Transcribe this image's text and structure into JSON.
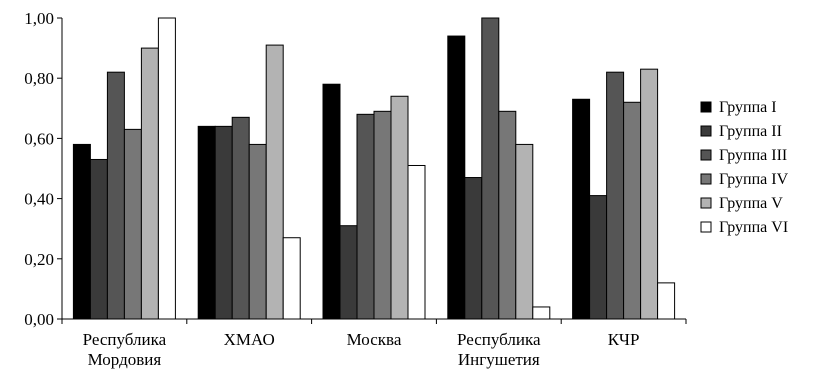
{
  "chart_data": {
    "type": "bar",
    "title": "",
    "xlabel": "",
    "ylabel": "",
    "ylim": [
      0,
      1
    ],
    "yticks": [
      0,
      0.2,
      0.4,
      0.6,
      0.8,
      1.0
    ],
    "ytick_labels": [
      "0,00",
      "0,20",
      "0,40",
      "0,60",
      "0,80",
      "1,00"
    ],
    "categories": [
      [
        "Республика",
        "Мордовия"
      ],
      [
        "ХМАО"
      ],
      [
        "Москва"
      ],
      [
        "Республика",
        "Ингушетия"
      ],
      [
        "КЧР"
      ]
    ],
    "series": [
      {
        "name": "Группа I",
        "color": "#000000",
        "values": [
          0.58,
          0.64,
          0.78,
          0.94,
          0.73
        ]
      },
      {
        "name": "Группа II",
        "color": "#3a3a3a",
        "values": [
          0.53,
          0.64,
          0.31,
          0.47,
          0.41
        ]
      },
      {
        "name": "Группа III",
        "color": "#555555",
        "values": [
          0.82,
          0.67,
          0.68,
          1.0,
          0.82
        ]
      },
      {
        "name": "Группа IV",
        "color": "#777777",
        "values": [
          0.63,
          0.58,
          0.69,
          0.69,
          0.72
        ]
      },
      {
        "name": "Группа V",
        "color": "#b3b3b3",
        "values": [
          0.9,
          0.91,
          0.74,
          0.58,
          0.83
        ]
      },
      {
        "name": "Группа VI",
        "color": "#ffffff",
        "values": [
          1.0,
          0.27,
          0.51,
          0.04,
          0.12
        ]
      }
    ],
    "grid": false,
    "legend_position": "right"
  }
}
